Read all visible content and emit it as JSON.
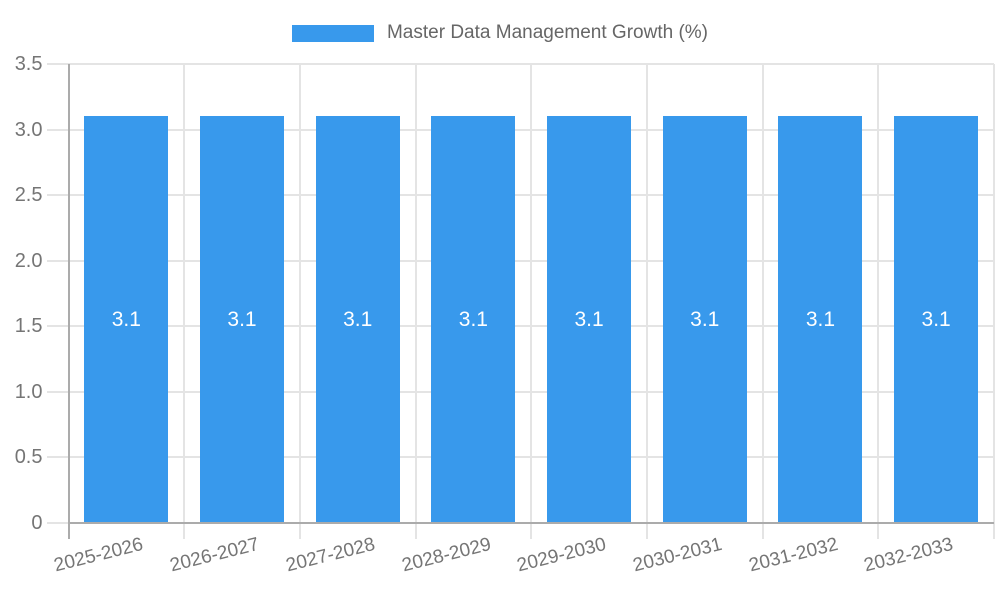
{
  "legend": {
    "series_label": "Master Data Management Growth (%)",
    "swatch_color": "#3899EC"
  },
  "chart_data": {
    "type": "bar",
    "title": "Master Data Management Growth (%)",
    "categories": [
      "2025-2026",
      "2026-2027",
      "2027-2028",
      "2028-2029",
      "2029-2030",
      "2030-2031",
      "2031-2032",
      "2032-2033"
    ],
    "values": [
      3.1,
      3.1,
      3.1,
      3.1,
      3.1,
      3.1,
      3.1,
      3.1
    ],
    "bar_labels": [
      "3.1",
      "3.1",
      "3.1",
      "3.1",
      "3.1",
      "3.1",
      "3.1",
      "3.1"
    ],
    "series": [
      {
        "name": "Master Data Management Growth (%)",
        "values": [
          3.1,
          3.1,
          3.1,
          3.1,
          3.1,
          3.1,
          3.1,
          3.1
        ]
      }
    ],
    "xlabel": "",
    "ylabel": "",
    "ylim": [
      0,
      3.5
    ],
    "ytick_values": [
      0,
      0.5,
      1,
      1.5,
      2,
      2.5,
      3,
      3.5
    ],
    "ytick_labels": [
      "0",
      "0.5",
      "1.0",
      "1.5",
      "2.0",
      "2.5",
      "3.0",
      "3.5"
    ],
    "grid": true,
    "legend_position": "top",
    "colors": {
      "bar": "#3899EC",
      "bar_label": "#FFFFFF",
      "grid": "#E4E4E4",
      "axis": "#ABABAB",
      "tick_label": "#757575",
      "legend_text": "#666666",
      "background": "#FFFFFF"
    }
  }
}
